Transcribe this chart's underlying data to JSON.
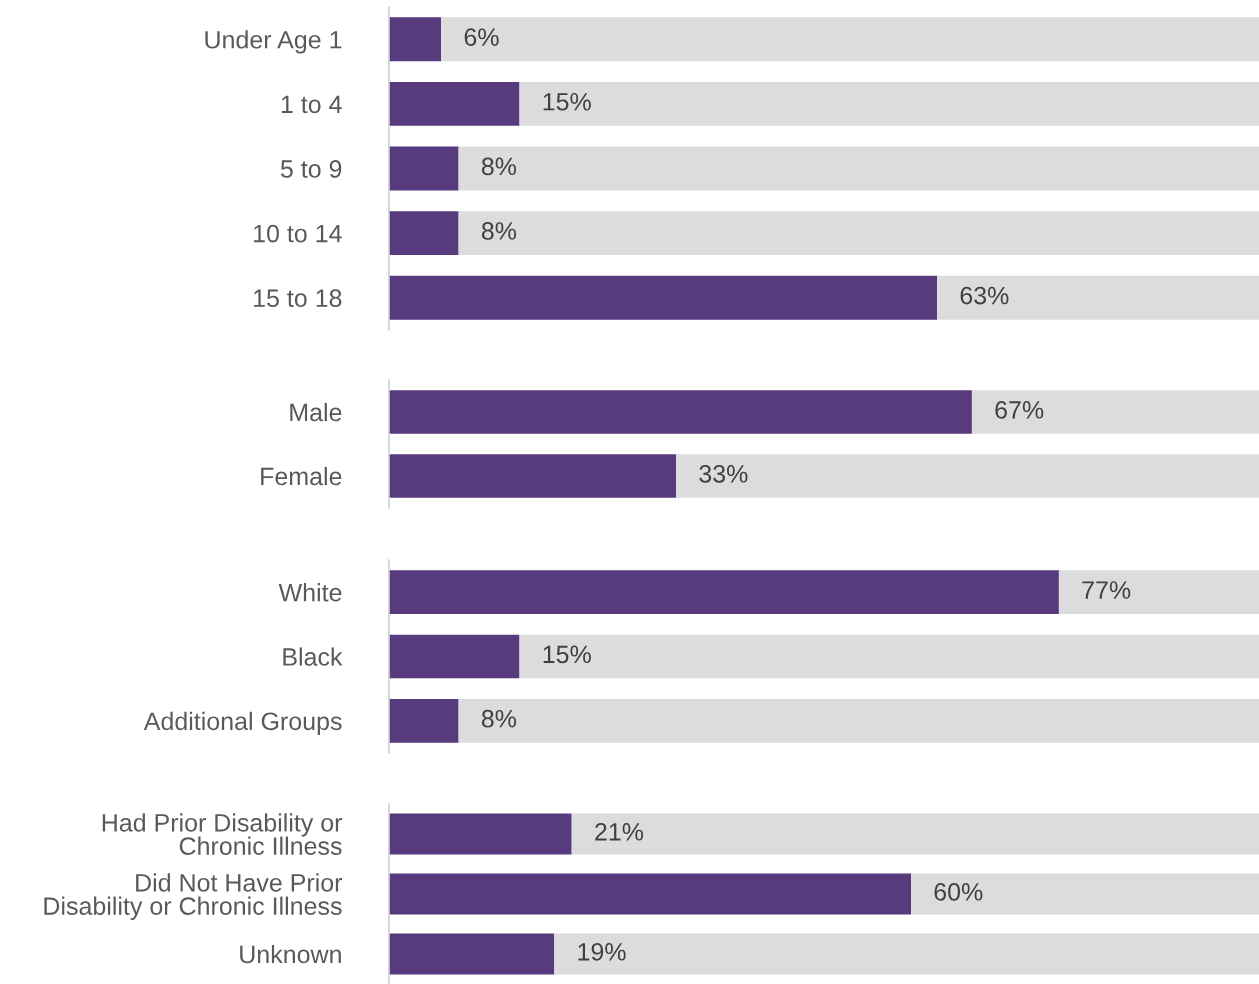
{
  "chart_data": [
    {
      "type": "bar",
      "orientation": "horizontal",
      "stacked": true,
      "xlim": [
        0,
        100
      ],
      "tick_labels": "y",
      "grid": false,
      "legend": false,
      "categories": [
        "Under Age 1",
        "1 to 4",
        "5 to 9",
        "10 to 14",
        "15 to 18"
      ],
      "series": [
        {
          "color": "#573b7e",
          "values": [
            6,
            15,
            8,
            8,
            63
          ],
          "value_labels": [
            "6%",
            "15%",
            "8%",
            "8%",
            "63%"
          ]
        },
        {
          "color": "#dcdcde",
          "values": [
            94,
            85,
            92,
            92,
            37
          ]
        }
      ]
    },
    {
      "type": "bar",
      "orientation": "horizontal",
      "stacked": true,
      "xlim": [
        0,
        100
      ],
      "tick_labels": "y",
      "grid": false,
      "legend": false,
      "categories": [
        "Male",
        "Female"
      ],
      "series": [
        {
          "color": "#573b7e",
          "values": [
            67,
            33
          ],
          "value_labels": [
            "67%",
            "33%"
          ]
        },
        {
          "color": "#dcdcde",
          "values": [
            33,
            67
          ]
        }
      ]
    },
    {
      "type": "bar",
      "orientation": "horizontal",
      "stacked": true,
      "xlim": [
        0,
        100
      ],
      "tick_labels": "y",
      "grid": false,
      "legend": false,
      "categories": [
        "White",
        "Black",
        "Additional Groups"
      ],
      "series": [
        {
          "color": "#573b7e",
          "values": [
            77,
            15,
            8
          ],
          "value_labels": [
            "77%",
            "15%",
            "8%"
          ]
        },
        {
          "color": "#dcdcde",
          "values": [
            23,
            85,
            92
          ]
        }
      ]
    },
    {
      "type": "bar",
      "orientation": "horizontal",
      "stacked": true,
      "xlim": [
        0,
        100
      ],
      "tick_labels": "y",
      "grid": false,
      "legend": false,
      "categories": [
        "Had Prior Disability or\nChronic Illness",
        "Did Not Have Prior\nDisability or Chronic Illness",
        "Unknown"
      ],
      "series": [
        {
          "color": "#573b7e",
          "values": [
            21,
            60,
            19
          ],
          "value_labels": [
            "21%",
            "60%",
            "19%"
          ]
        },
        {
          "color": "#dcdcde",
          "values": [
            79,
            40,
            81
          ]
        }
      ]
    }
  ]
}
